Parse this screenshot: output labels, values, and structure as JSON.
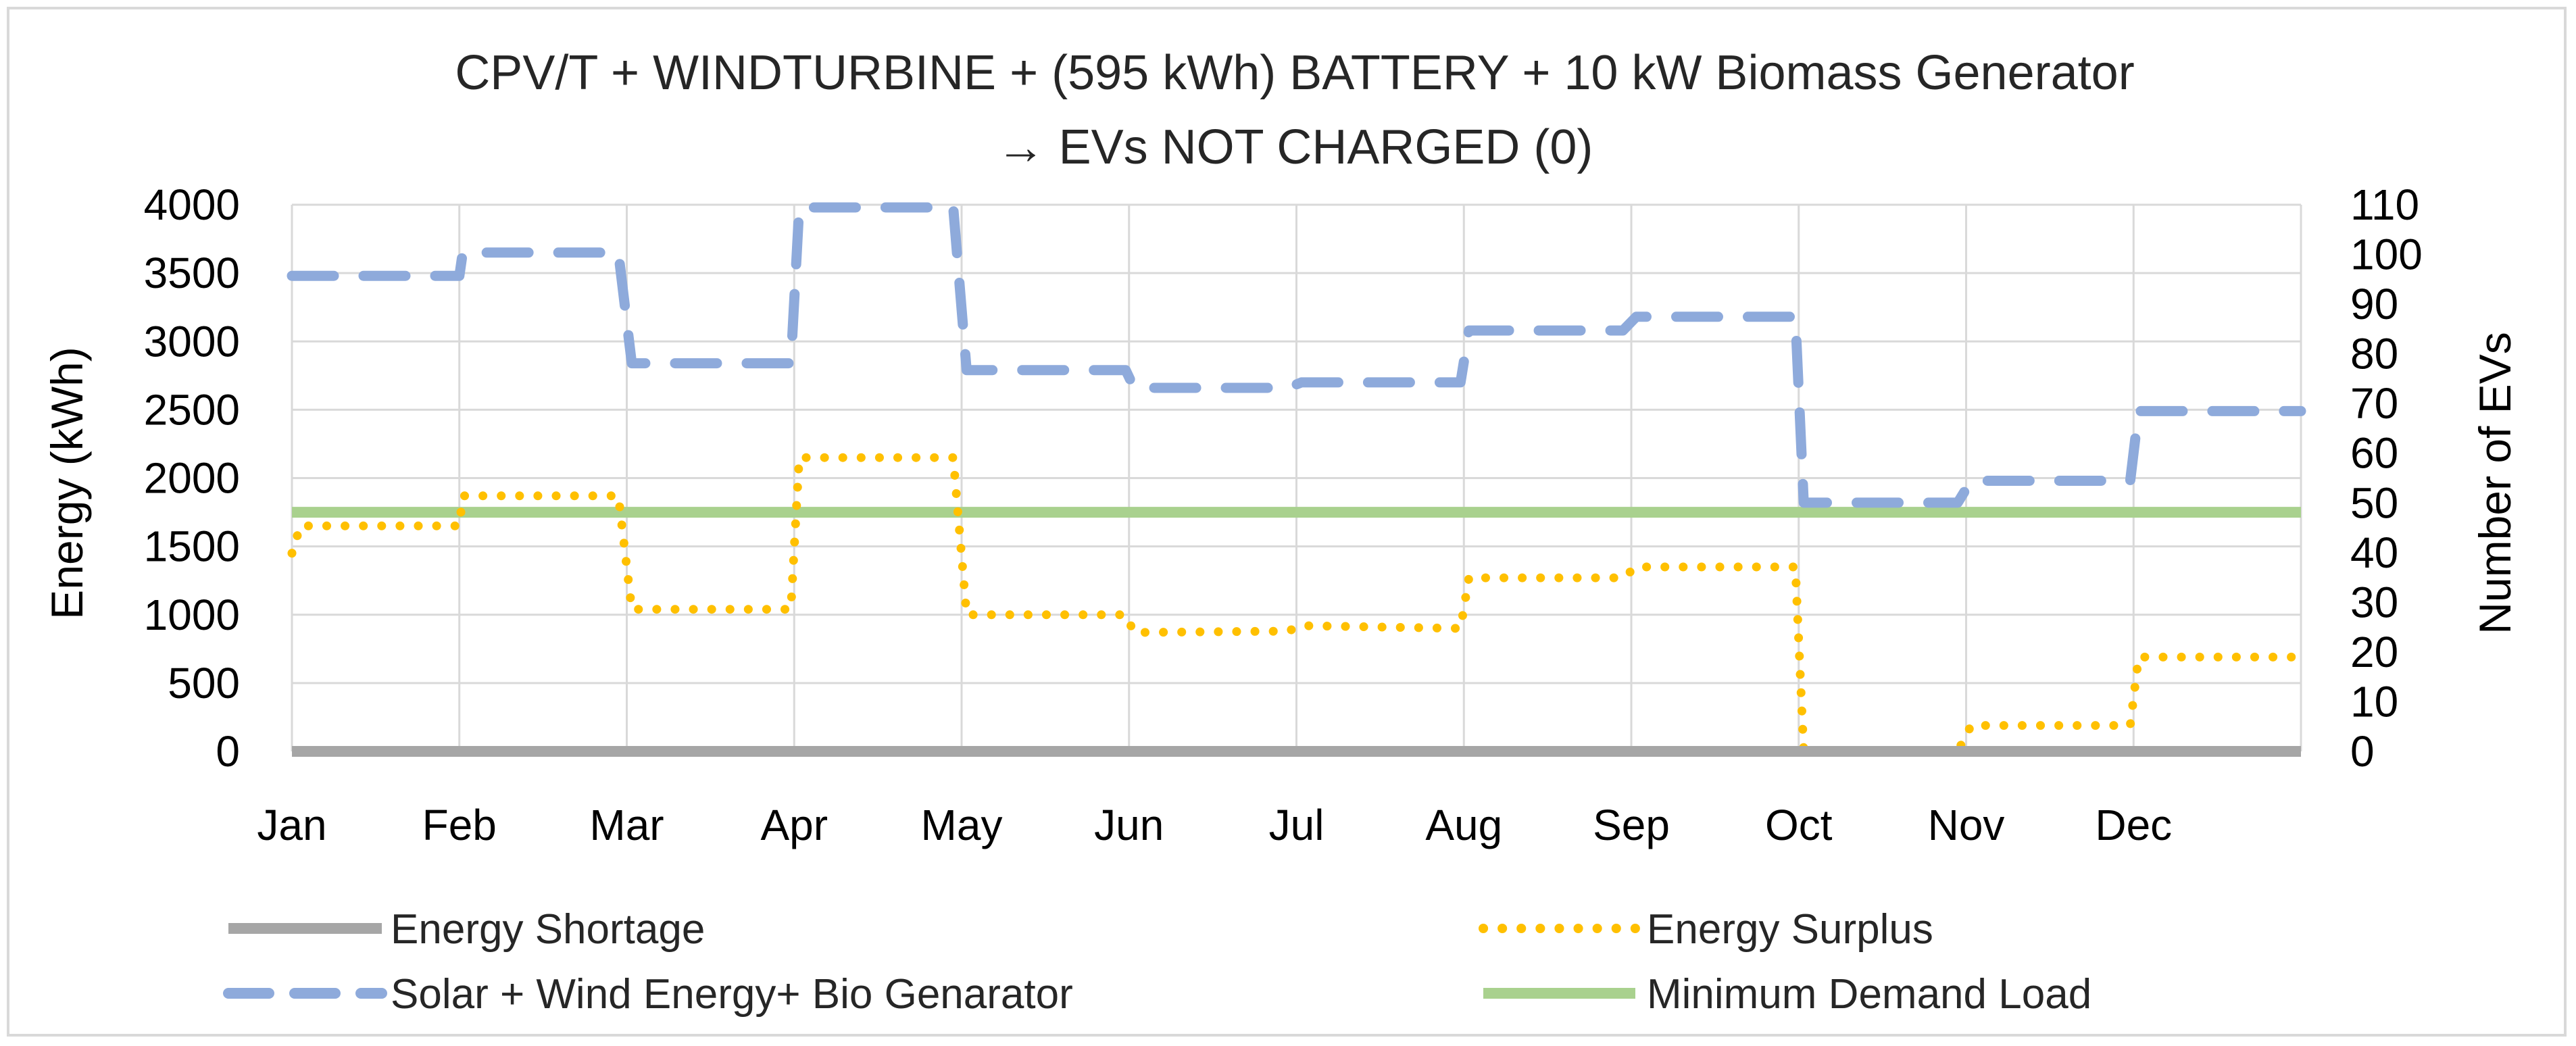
{
  "chart_data": {
    "type": "line",
    "title_line1": "CPV/T + WINDTURBINE + (595 kWh) BATTERY + 10 kW Biomass Generator",
    "title_line2": "→ EVs NOT CHARGED (0)",
    "ylabel": "Energy (kWh)",
    "y2label": "Number of EVs",
    "ylim": [
      0,
      4000
    ],
    "y2lim": [
      0,
      110
    ],
    "yticks": [
      "0",
      "500",
      "1000",
      "1500",
      "2000",
      "2500",
      "3000",
      "3500",
      "4000"
    ],
    "y2ticks": [
      "0",
      "10",
      "20",
      "30",
      "40",
      "50",
      "60",
      "70",
      "80",
      "90",
      "100",
      "110"
    ],
    "xlim": [
      0,
      12
    ],
    "categories": [
      "Jan",
      "Feb",
      "Mar",
      "Apr",
      "May",
      "Jun",
      "Jul",
      "Aug",
      "Sep",
      "Oct",
      "Nov",
      "Dec"
    ],
    "series": [
      {
        "name": "Energy Shortage",
        "color": "#a6a6a6",
        "style": "solid",
        "x": [
          0,
          12
        ],
        "y": [
          0,
          0
        ]
      },
      {
        "name": "Energy Surplus",
        "color": "#ffc000",
        "style": "dotted",
        "x": [
          0,
          0.05,
          1,
          1.02,
          1.95,
          2.03,
          2.98,
          3.03,
          3.95,
          4.03,
          4.98,
          5.03,
          5.95,
          6.03,
          6.98,
          7.03,
          7.95,
          8.03,
          8.98,
          9.03,
          9.95,
          10.03,
          10.98,
          11.03,
          12
        ],
        "y": [
          1450,
          1650,
          1650,
          1870,
          1870,
          1040,
          1040,
          2150,
          2150,
          1000,
          1000,
          870,
          880,
          920,
          900,
          1270,
          1270,
          1350,
          1350,
          0,
          0,
          190,
          190,
          690,
          690
        ]
      },
      {
        "name": "Solar + Wind Energy+ Bio Genarator",
        "color": "#8eaadb",
        "style": "dashed",
        "x": [
          0,
          1,
          1.02,
          1.95,
          2.03,
          2.98,
          3.03,
          3.95,
          4.03,
          4.98,
          5.03,
          5.95,
          6.03,
          6.98,
          7.03,
          7.95,
          8.03,
          8.98,
          9.03,
          9.95,
          10.03,
          10.98,
          11.03,
          12
        ],
        "y": [
          3480,
          3480,
          3650,
          3650,
          2840,
          2840,
          3980,
          3980,
          2790,
          2790,
          2660,
          2660,
          2700,
          2700,
          3080,
          3080,
          3180,
          3180,
          1820,
          1820,
          1980,
          1980,
          2490,
          2490
        ]
      },
      {
        "name": "Minimum Demand Load",
        "color": "#a9d18e",
        "style": "solid",
        "x": [
          0,
          12
        ],
        "y": [
          1750,
          1750
        ]
      }
    ],
    "legend": "bottom",
    "grid": true
  }
}
